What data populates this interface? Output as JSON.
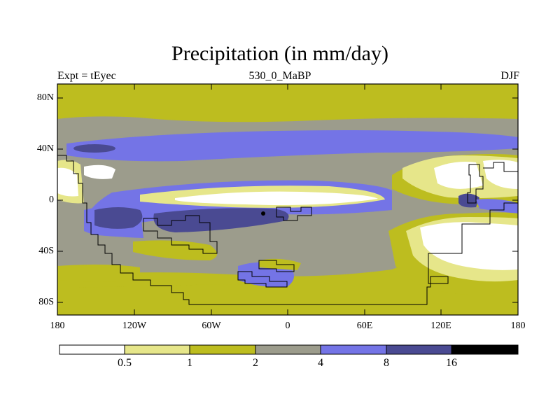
{
  "title": "Precipitation (in mm/day)",
  "subtitle_left": "Expt = tEyec",
  "subtitle_center": "530_0_MaBP",
  "subtitle_right": "DJF",
  "y_ticks": [
    "80N",
    "40N",
    "0",
    "40S",
    "80S"
  ],
  "x_ticks": [
    "180",
    "120W",
    "60W",
    "0",
    "60E",
    "120E",
    "180"
  ],
  "colorbar": {
    "labels": [
      "0.5",
      "1",
      "2",
      "4",
      "8",
      "16"
    ],
    "colors": [
      "#ffffff",
      "#e6e68a",
      "#bdbd1f",
      "#9c9c8c",
      "#7474e6",
      "#4a4a92",
      "#000000"
    ]
  },
  "colors": {
    "white": "#ffffff",
    "light_yellow": "#e6e68a",
    "olive": "#bdbd1f",
    "gray": "#9c9c8c",
    "blue": "#7474e6",
    "dark_blue": "#4a4a92",
    "black": "#000000"
  }
}
